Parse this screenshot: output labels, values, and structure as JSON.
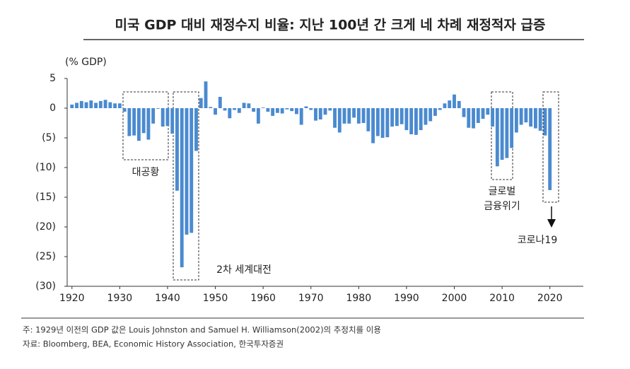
{
  "chart_data": {
    "type": "bar",
    "title": "미국 GDP 대비 재정수지 비율: 지난 100년 간 크게 네 차례 재정적자 급증",
    "y_label": "(% GDP)",
    "color": "#4a8ad0",
    "x": [
      1920,
      1921,
      1922,
      1923,
      1924,
      1925,
      1926,
      1927,
      1928,
      1929,
      1930,
      1931,
      1932,
      1933,
      1934,
      1935,
      1936,
      1937,
      1938,
      1939,
      1940,
      1941,
      1942,
      1943,
      1944,
      1945,
      1946,
      1947,
      1948,
      1949,
      1950,
      1951,
      1952,
      1953,
      1954,
      1955,
      1956,
      1957,
      1958,
      1959,
      1960,
      1961,
      1962,
      1963,
      1964,
      1965,
      1966,
      1967,
      1968,
      1969,
      1970,
      1971,
      1972,
      1973,
      1974,
      1975,
      1976,
      1977,
      1978,
      1979,
      1980,
      1981,
      1982,
      1983,
      1984,
      1985,
      1986,
      1987,
      1988,
      1989,
      1990,
      1991,
      1992,
      1993,
      1994,
      1995,
      1996,
      1997,
      1998,
      1999,
      2000,
      2001,
      2002,
      2003,
      2004,
      2005,
      2006,
      2007,
      2008,
      2009,
      2010,
      2011,
      2012,
      2013,
      2014,
      2015,
      2016,
      2017,
      2018,
      2019,
      2020
    ],
    "values": [
      0.6,
      0.9,
      1.2,
      1.0,
      1.3,
      0.9,
      1.2,
      1.4,
      1.0,
      0.8,
      0.8,
      -0.6,
      -4.7,
      -4.6,
      -5.5,
      -4.2,
      -5.3,
      -2.6,
      -0.1,
      -3.1,
      -3.0,
      -4.3,
      -13.9,
      -26.8,
      -21.3,
      -21.0,
      -7.2,
      1.7,
      4.5,
      0.2,
      -1.1,
      1.9,
      -0.4,
      -1.7,
      -0.3,
      -0.8,
      0.9,
      0.8,
      -0.6,
      -2.6,
      0.1,
      -0.6,
      -1.3,
      -0.8,
      -0.9,
      -0.2,
      -0.5,
      -1.0,
      -2.8,
      0.3,
      -0.3,
      -2.1,
      -1.9,
      -1.1,
      -0.4,
      -3.3,
      -4.1,
      -2.6,
      -2.6,
      -1.6,
      -2.6,
      -2.5,
      -3.9,
      -5.9,
      -4.7,
      -5.0,
      -4.9,
      -3.1,
      -3.0,
      -2.7,
      -3.7,
      -4.4,
      -4.5,
      -3.7,
      -2.8,
      -2.2,
      -1.3,
      -0.3,
      0.8,
      1.3,
      2.3,
      1.2,
      -1.5,
      -3.3,
      -3.4,
      -2.5,
      -1.8,
      -1.1,
      -3.1,
      -9.8,
      -8.7,
      -8.4,
      -6.7,
      -4.1,
      -2.8,
      -2.4,
      -3.1,
      -3.4,
      -3.8,
      -4.6,
      -13.8
    ],
    "xlim": [
      1919,
      2027
    ],
    "xticks": [
      1920,
      1930,
      1940,
      1950,
      1960,
      1970,
      1980,
      1990,
      2000,
      2010,
      2020
    ],
    "ylim": [
      -30,
      5
    ],
    "yticks": [
      {
        "value": -30,
        "label": "(30)"
      },
      {
        "value": -25,
        "label": "(25)"
      },
      {
        "value": -20,
        "label": "(20)"
      },
      {
        "value": -15,
        "label": "(15)"
      },
      {
        "value": -10,
        "label": "(10)"
      },
      {
        "value": -5,
        "label": "(5)"
      },
      0,
      5
    ],
    "annotations": [
      "대공황",
      "2차 세계대전",
      "글로벌",
      "금융위기",
      "코로나19"
    ],
    "notes": [
      "주: 1929년 이전의 GDP 값은 Louis Johnston and Samuel H. Williamson(2002)의 추정치를 이용",
      "자료: Bloomberg, BEA, Economic History Association, 한국투자증권"
    ]
  }
}
